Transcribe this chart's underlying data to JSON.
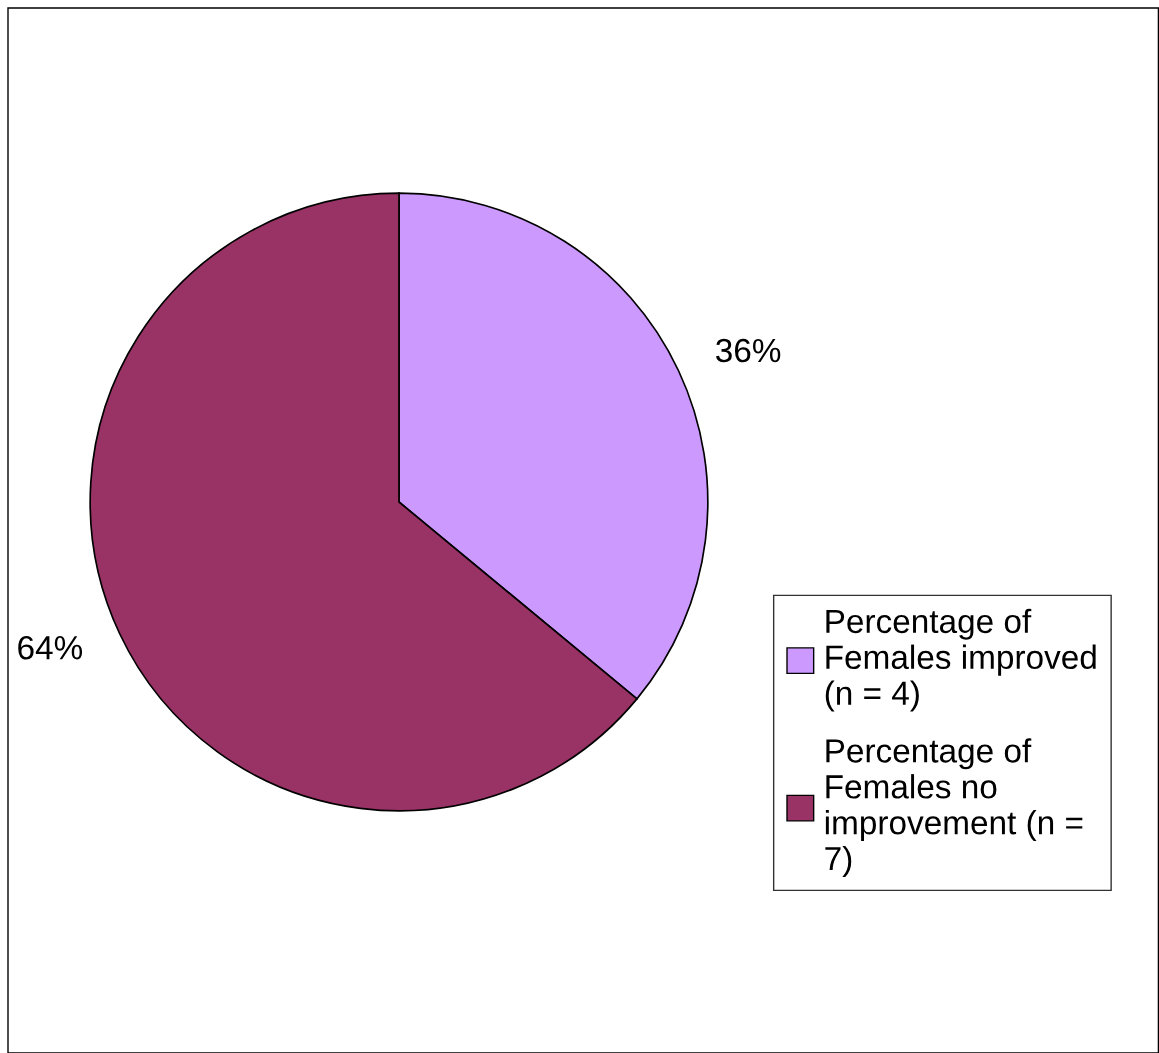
{
  "chart_data": {
    "type": "pie",
    "categories": [
      "Percentage of Females improved (n = 4)",
      "Percentage of Females no improvement (n = 7)"
    ],
    "values": [
      36,
      64
    ],
    "colors": [
      "#cc99ff",
      "#993366"
    ],
    "value_labels": [
      "36%",
      "64%"
    ],
    "legend": "right"
  }
}
